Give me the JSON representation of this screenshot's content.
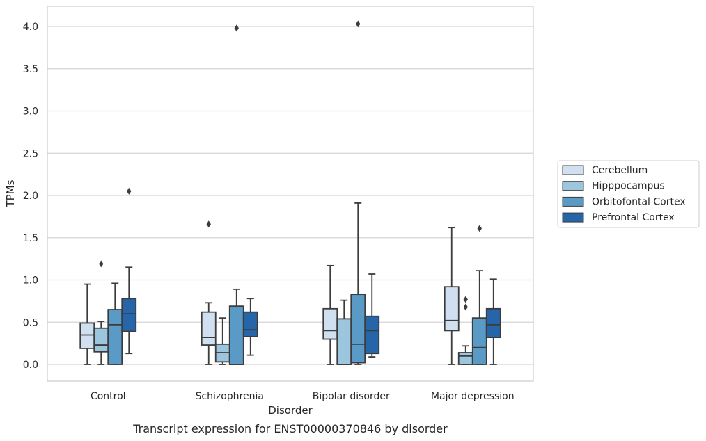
{
  "chart_data": {
    "type": "box",
    "xlabel": "Disorder",
    "ylabel": "TPMs",
    "caption": "Transcript expression for ENST00000370846 by disorder",
    "ylim": [
      -0.2,
      4.24
    ],
    "yticks": [
      "0.0",
      "0.5",
      "1.0",
      "1.5",
      "2.0",
      "2.5",
      "3.0",
      "3.5",
      "4.0"
    ],
    "grid": true,
    "legend_position": "right",
    "categories": [
      "Control",
      "Schizophrenia",
      "Bipolar disorder",
      "Major depression"
    ],
    "series": [
      {
        "name": "Cerebellum",
        "color": "#d1e0f0",
        "boxes": [
          {
            "min": 0.0,
            "q1": 0.19,
            "median": 0.35,
            "q3": 0.49,
            "max": 0.95,
            "outliers": []
          },
          {
            "min": 0.0,
            "q1": 0.23,
            "median": 0.32,
            "q3": 0.62,
            "max": 0.73,
            "outliers": [
              1.66
            ]
          },
          {
            "min": 0.0,
            "q1": 0.3,
            "median": 0.4,
            "q3": 0.66,
            "max": 1.17,
            "outliers": []
          },
          {
            "min": 0.0,
            "q1": 0.4,
            "median": 0.52,
            "q3": 0.92,
            "max": 1.62,
            "outliers": []
          }
        ]
      },
      {
        "name": "Hipppocampus",
        "color": "#9cc5de",
        "boxes": [
          {
            "min": 0.0,
            "q1": 0.15,
            "median": 0.23,
            "q3": 0.43,
            "max": 0.51,
            "outliers": [
              1.19
            ]
          },
          {
            "min": 0.0,
            "q1": 0.03,
            "median": 0.14,
            "q3": 0.24,
            "max": 0.55,
            "outliers": []
          },
          {
            "min": 0.0,
            "q1": 0.0,
            "median": 0.0,
            "q3": 0.54,
            "max": 0.76,
            "outliers": []
          },
          {
            "min": 0.0,
            "q1": 0.0,
            "median": 0.1,
            "q3": 0.14,
            "max": 0.22,
            "outliers": [
              0.68,
              0.77
            ]
          }
        ]
      },
      {
        "name": "Orbitofontal Cortex",
        "color": "#5a9ac6",
        "boxes": [
          {
            "min": 0.0,
            "q1": 0.0,
            "median": 0.47,
            "q3": 0.65,
            "max": 0.96,
            "outliers": []
          },
          {
            "min": 0.0,
            "q1": 0.0,
            "median": 0.0,
            "q3": 0.69,
            "max": 0.89,
            "outliers": [
              3.98
            ]
          },
          {
            "min": 0.0,
            "q1": 0.02,
            "median": 0.24,
            "q3": 0.83,
            "max": 1.91,
            "outliers": [
              4.03
            ]
          },
          {
            "min": 0.0,
            "q1": 0.0,
            "median": 0.2,
            "q3": 0.55,
            "max": 1.11,
            "outliers": [
              1.61
            ]
          }
        ]
      },
      {
        "name": "Prefrontal Cortex",
        "color": "#2565a8",
        "boxes": [
          {
            "min": 0.13,
            "q1": 0.39,
            "median": 0.6,
            "q3": 0.78,
            "max": 1.15,
            "outliers": [
              2.05
            ]
          },
          {
            "min": 0.11,
            "q1": 0.33,
            "median": 0.41,
            "q3": 0.62,
            "max": 0.78,
            "outliers": []
          },
          {
            "min": 0.09,
            "q1": 0.13,
            "median": 0.4,
            "q3": 0.57,
            "max": 1.07,
            "outliers": []
          },
          {
            "min": 0.0,
            "q1": 0.32,
            "median": 0.47,
            "q3": 0.66,
            "max": 1.01,
            "outliers": []
          }
        ]
      }
    ]
  }
}
